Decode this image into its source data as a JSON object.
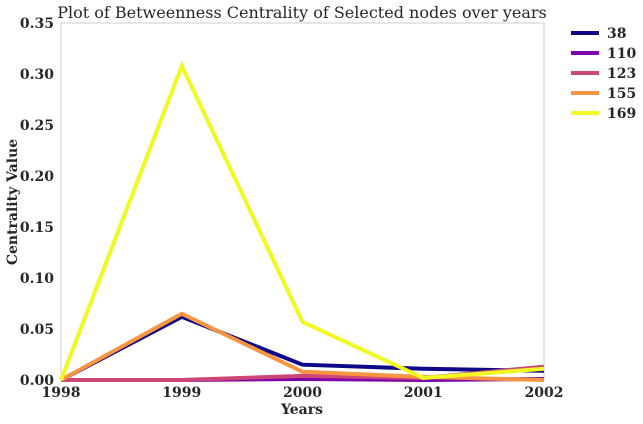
{
  "chart_data": {
    "type": "line",
    "title": "Plot of Betweenness Centrality of Selected nodes over years",
    "xlabel": "Years",
    "ylabel": "Centrality Value",
    "x": [
      1998,
      1999,
      2000,
      2001,
      2002
    ],
    "x_ticks": [
      "1998",
      "1999",
      "2000",
      "2001",
      "2002"
    ],
    "xlim": [
      1998,
      2002
    ],
    "ylim": [
      0,
      0.35
    ],
    "y_ticks": [
      "0.00",
      "0.05",
      "0.10",
      "0.15",
      "0.20",
      "0.25",
      "0.30",
      "0.35"
    ],
    "grid": false,
    "legend_position": "outside-top-right",
    "series": [
      {
        "name": "38",
        "color": "#0d0887",
        "values": [
          0.0,
          0.062,
          0.015,
          0.011,
          0.009
        ]
      },
      {
        "name": "110",
        "color": "#7e03a8",
        "values": [
          0.0,
          0.0,
          0.001,
          0.0,
          0.001
        ]
      },
      {
        "name": "123",
        "color": "#cc4778",
        "values": [
          0.0,
          0.0,
          0.004,
          0.002,
          0.013
        ]
      },
      {
        "name": "155",
        "color": "#f89540",
        "values": [
          0.0,
          0.065,
          0.008,
          0.003,
          0.0
        ]
      },
      {
        "name": "169",
        "color": "#f0f921",
        "values": [
          0.0,
          0.308,
          0.057,
          0.002,
          0.011
        ]
      }
    ]
  }
}
